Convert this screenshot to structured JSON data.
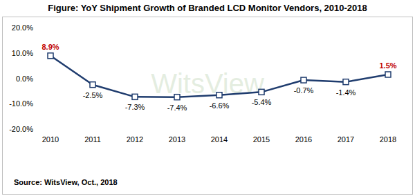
{
  "chart_data": {
    "type": "line",
    "title": "Figure: YoY Shipment Growth of Branded LCD Monitor Vendors, 2010-2018",
    "source": "Source: WitsView, Oct., 2018",
    "watermark": "WitsView",
    "categories": [
      "2010",
      "2011",
      "2012",
      "2013",
      "2014",
      "2015",
      "2016",
      "2017",
      "2018"
    ],
    "values": [
      8.9,
      -2.5,
      -7.3,
      -7.4,
      -6.6,
      -5.4,
      -0.7,
      -1.4,
      1.5
    ],
    "value_labels": [
      "8.9%",
      "-2.5%",
      "-7.3%",
      "-7.4%",
      "-6.6%",
      "-5.4%",
      "-0.7%",
      "-1.4%",
      "1.5%"
    ],
    "color": "#1f3c6e",
    "marker": "square",
    "ylim": [
      -20,
      20
    ],
    "yticks": [
      {
        "value": -20,
        "label": "-20.0%"
      },
      {
        "value": -10,
        "label": "-10.0%"
      },
      {
        "value": 0,
        "label": "0.0%"
      },
      {
        "value": 10,
        "label": "10.0%"
      },
      {
        "value": 20,
        "label": "20.0%"
      }
    ],
    "grid": false,
    "data_labels": true
  }
}
